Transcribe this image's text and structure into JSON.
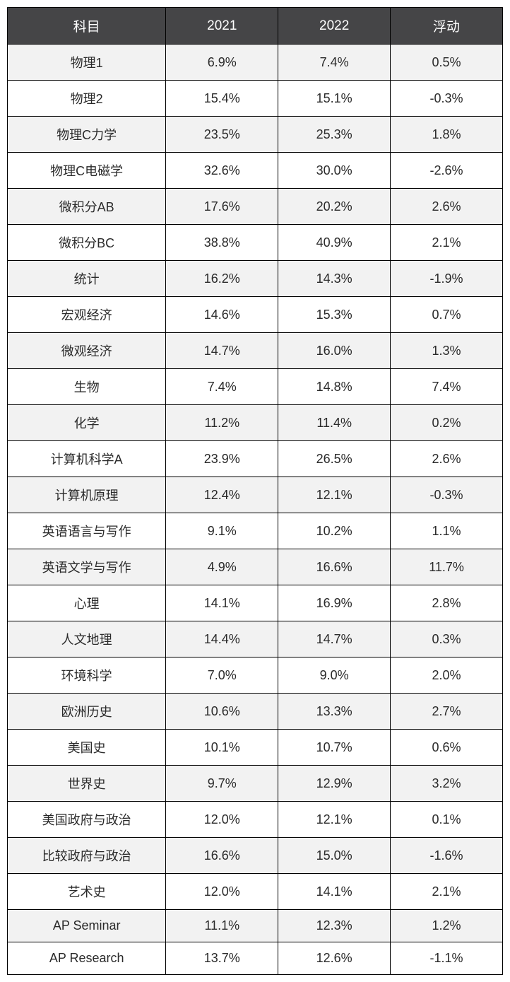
{
  "table": {
    "type": "table",
    "header_bg": "#454547",
    "header_text_color": "#ffffff",
    "row_odd_bg": "#f2f2f2",
    "row_even_bg": "#ffffff",
    "border_color": "#000000",
    "text_color": "#2a2a2a",
    "header_fontsize": 19,
    "cell_fontsize": 18,
    "columns": [
      "科目",
      "2021",
      "2022",
      "浮动"
    ],
    "rows": [
      [
        "物理1",
        "6.9%",
        "7.4%",
        "0.5%"
      ],
      [
        "物理2",
        "15.4%",
        "15.1%",
        "-0.3%"
      ],
      [
        "物理C力学",
        "23.5%",
        "25.3%",
        "1.8%"
      ],
      [
        "物理C电磁学",
        "32.6%",
        "30.0%",
        "-2.6%"
      ],
      [
        "微积分AB",
        "17.6%",
        "20.2%",
        "2.6%"
      ],
      [
        "微积分BC",
        "38.8%",
        "40.9%",
        "2.1%"
      ],
      [
        "统计",
        "16.2%",
        "14.3%",
        "-1.9%"
      ],
      [
        "宏观经济",
        "14.6%",
        "15.3%",
        "0.7%"
      ],
      [
        "微观经济",
        "14.7%",
        "16.0%",
        "1.3%"
      ],
      [
        "生物",
        "7.4%",
        "14.8%",
        "7.4%"
      ],
      [
        "化学",
        "11.2%",
        "11.4%",
        "0.2%"
      ],
      [
        "计算机科学A",
        "23.9%",
        "26.5%",
        "2.6%"
      ],
      [
        "计算机原理",
        "12.4%",
        "12.1%",
        "-0.3%"
      ],
      [
        "英语语言与写作",
        "9.1%",
        "10.2%",
        "1.1%"
      ],
      [
        "英语文学与写作",
        "4.9%",
        "16.6%",
        "11.7%"
      ],
      [
        "心理",
        "14.1%",
        "16.9%",
        "2.8%"
      ],
      [
        "人文地理",
        "14.4%",
        "14.7%",
        "0.3%"
      ],
      [
        "环境科学",
        "7.0%",
        "9.0%",
        "2.0%"
      ],
      [
        "欧洲历史",
        "10.6%",
        "13.3%",
        "2.7%"
      ],
      [
        "美国史",
        "10.1%",
        "10.7%",
        "0.6%"
      ],
      [
        "世界史",
        "9.7%",
        "12.9%",
        "3.2%"
      ],
      [
        "美国政府与政治",
        "12.0%",
        "12.1%",
        "0.1%"
      ],
      [
        "比较政府与政治",
        "16.6%",
        "15.0%",
        "-1.6%"
      ],
      [
        "艺术史",
        "12.0%",
        "14.1%",
        "2.1%"
      ],
      [
        "AP Seminar",
        "11.1%",
        "12.3%",
        "1.2%"
      ],
      [
        "AP Research",
        "13.7%",
        "12.6%",
        "-1.1%"
      ]
    ]
  }
}
